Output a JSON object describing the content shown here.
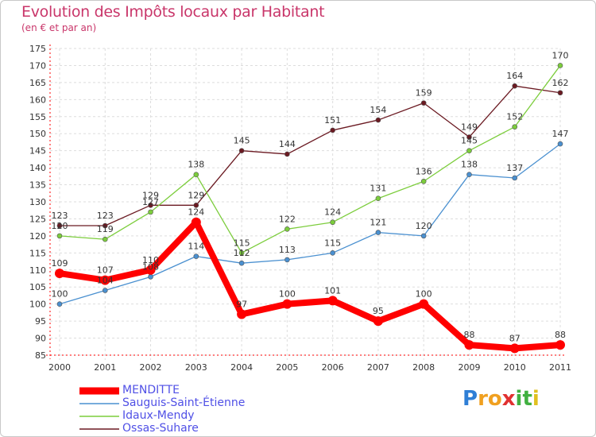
{
  "chart_data": {
    "type": "line",
    "title": "Evolution des Impôts locaux par Habitant",
    "subtitle": "(en € et par an)",
    "categories": [
      "2000",
      "2001",
      "2002",
      "2003",
      "2004",
      "2005",
      "2006",
      "2007",
      "2008",
      "2009",
      "2010",
      "2011"
    ],
    "ylim": [
      85,
      175
    ],
    "yticks": [
      85,
      90,
      95,
      100,
      105,
      110,
      115,
      120,
      125,
      130,
      135,
      140,
      145,
      150,
      155,
      160,
      165,
      170,
      175
    ],
    "grid": true,
    "legend_position": "bottom-left",
    "series": [
      {
        "name": "MENDITTE",
        "color": "#ff0000",
        "values": [
          109,
          107,
          110,
          124,
          97,
          100,
          101,
          95,
          100,
          88,
          87,
          88
        ]
      },
      {
        "name": "Sauguis-Saint-Étienne",
        "color": "#4a90d0",
        "values": [
          100,
          104,
          108,
          114,
          112,
          113,
          115,
          121,
          120,
          138,
          137,
          147
        ]
      },
      {
        "name": "Idaux-Mendy",
        "color": "#7ccd3c",
        "values": [
          120,
          119,
          127,
          138,
          115,
          122,
          124,
          131,
          136,
          145,
          152,
          170
        ]
      },
      {
        "name": "Ossas-Suhare",
        "color": "#6b1a22",
        "values": [
          123,
          123,
          129,
          129,
          145,
          144,
          151,
          154,
          159,
          149,
          164,
          162
        ]
      }
    ]
  },
  "logo": {
    "letters": [
      "P",
      "r",
      "o",
      "x",
      "i",
      "t",
      "i"
    ],
    "colors": [
      "#2f7fd6",
      "#f0a020",
      "#f0a020",
      "#e03030",
      "#40b040",
      "#40b040",
      "#e0c020"
    ]
  }
}
